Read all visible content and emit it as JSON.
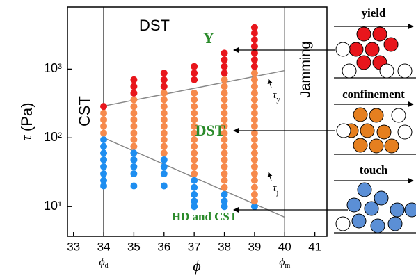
{
  "chart_data": {
    "type": "scatter",
    "y_label": {
      "symbol": "τ",
      "unit": "(Pa)"
    },
    "x_label": "ϕ",
    "xlim": [
      32.8,
      41.4
    ],
    "xticks": [
      33,
      34,
      35,
      36,
      37,
      38,
      39,
      40,
      41
    ],
    "ylim": [
      3.7,
      8000
    ],
    "yticks": [
      {
        "value": 10,
        "label": "10¹"
      },
      {
        "value": 100,
        "label": "10²"
      },
      {
        "value": 1000,
        "label": "10³"
      }
    ],
    "log_y": true,
    "series": [
      {
        "color": "#1e8ef0",
        "x": [
          34,
          34,
          34,
          34,
          34,
          34,
          34,
          34,
          35,
          35,
          35,
          35,
          35,
          36,
          36,
          36,
          36,
          37,
          37,
          37,
          37,
          37,
          38,
          38,
          38,
          39
        ],
        "values": [
          20,
          24,
          30,
          38,
          48,
          60,
          75,
          94,
          20,
          30,
          38,
          48,
          60,
          20,
          30,
          38,
          48,
          10,
          12,
          15,
          19,
          24,
          10,
          12,
          15,
          10
        ]
      },
      {
        "color": "#f68a4c",
        "x": [
          34,
          34,
          34,
          34,
          35,
          35,
          35,
          35,
          35,
          35,
          35,
          35,
          36,
          36,
          36,
          36,
          36,
          36,
          36,
          36,
          36,
          36,
          37,
          37,
          37,
          37,
          37,
          37,
          37,
          37,
          37,
          37,
          37,
          37,
          37,
          38,
          38,
          38,
          38,
          38,
          38,
          38,
          38,
          38,
          38,
          38,
          38,
          38,
          38,
          38,
          38,
          38,
          39,
          39,
          39,
          39,
          39,
          39,
          39,
          39,
          39,
          39,
          39,
          39,
          39,
          39,
          39,
          39,
          39,
          39,
          39,
          39
        ],
        "values": [
          117,
          147,
          183,
          229,
          75,
          94,
          117,
          147,
          183,
          229,
          286,
          358,
          60,
          75,
          94,
          117,
          147,
          183,
          229,
          286,
          358,
          447,
          30,
          38,
          48,
          60,
          75,
          94,
          117,
          147,
          183,
          229,
          286,
          358,
          447,
          19,
          24,
          30,
          38,
          48,
          60,
          75,
          94,
          117,
          147,
          183,
          229,
          286,
          358,
          447,
          559,
          699,
          12,
          15,
          19,
          24,
          30,
          38,
          48,
          60,
          75,
          94,
          117,
          147,
          183,
          229,
          286,
          358,
          447,
          559,
          699,
          874
        ]
      },
      {
        "color": "#e8161c",
        "x": [
          34,
          35,
          35,
          35,
          36,
          36,
          36,
          37,
          37,
          37,
          38,
          38,
          38,
          38,
          39,
          39,
          39,
          39,
          39,
          39,
          39
        ],
        "values": [
          286,
          447,
          559,
          699,
          559,
          699,
          874,
          699,
          874,
          1092,
          874,
          1092,
          1365,
          1707,
          1092,
          1365,
          1707,
          2134,
          2668,
          3335,
          4000
        ]
      }
    ],
    "reference_lines": [
      {
        "symbol": "τ",
        "subscript": "y",
        "x": [
          34,
          40
        ],
        "values": [
          290,
          950
        ]
      },
      {
        "symbol": "τ",
        "subscript": "j",
        "x": [
          34,
          40
        ],
        "values": [
          100,
          7
        ]
      }
    ],
    "vertical_lines": [
      {
        "x": 34,
        "symbol": "ϕ",
        "subscript": "d"
      },
      {
        "x": 40,
        "symbol": "ϕ",
        "subscript": "m"
      }
    ],
    "annotations": [
      "CST",
      "DST",
      "Jamming",
      "Y",
      "DST",
      "HD and CST"
    ],
    "panels": [
      {
        "title": "yield"
      },
      {
        "title": "confinement"
      },
      {
        "title": "touch"
      }
    ]
  }
}
